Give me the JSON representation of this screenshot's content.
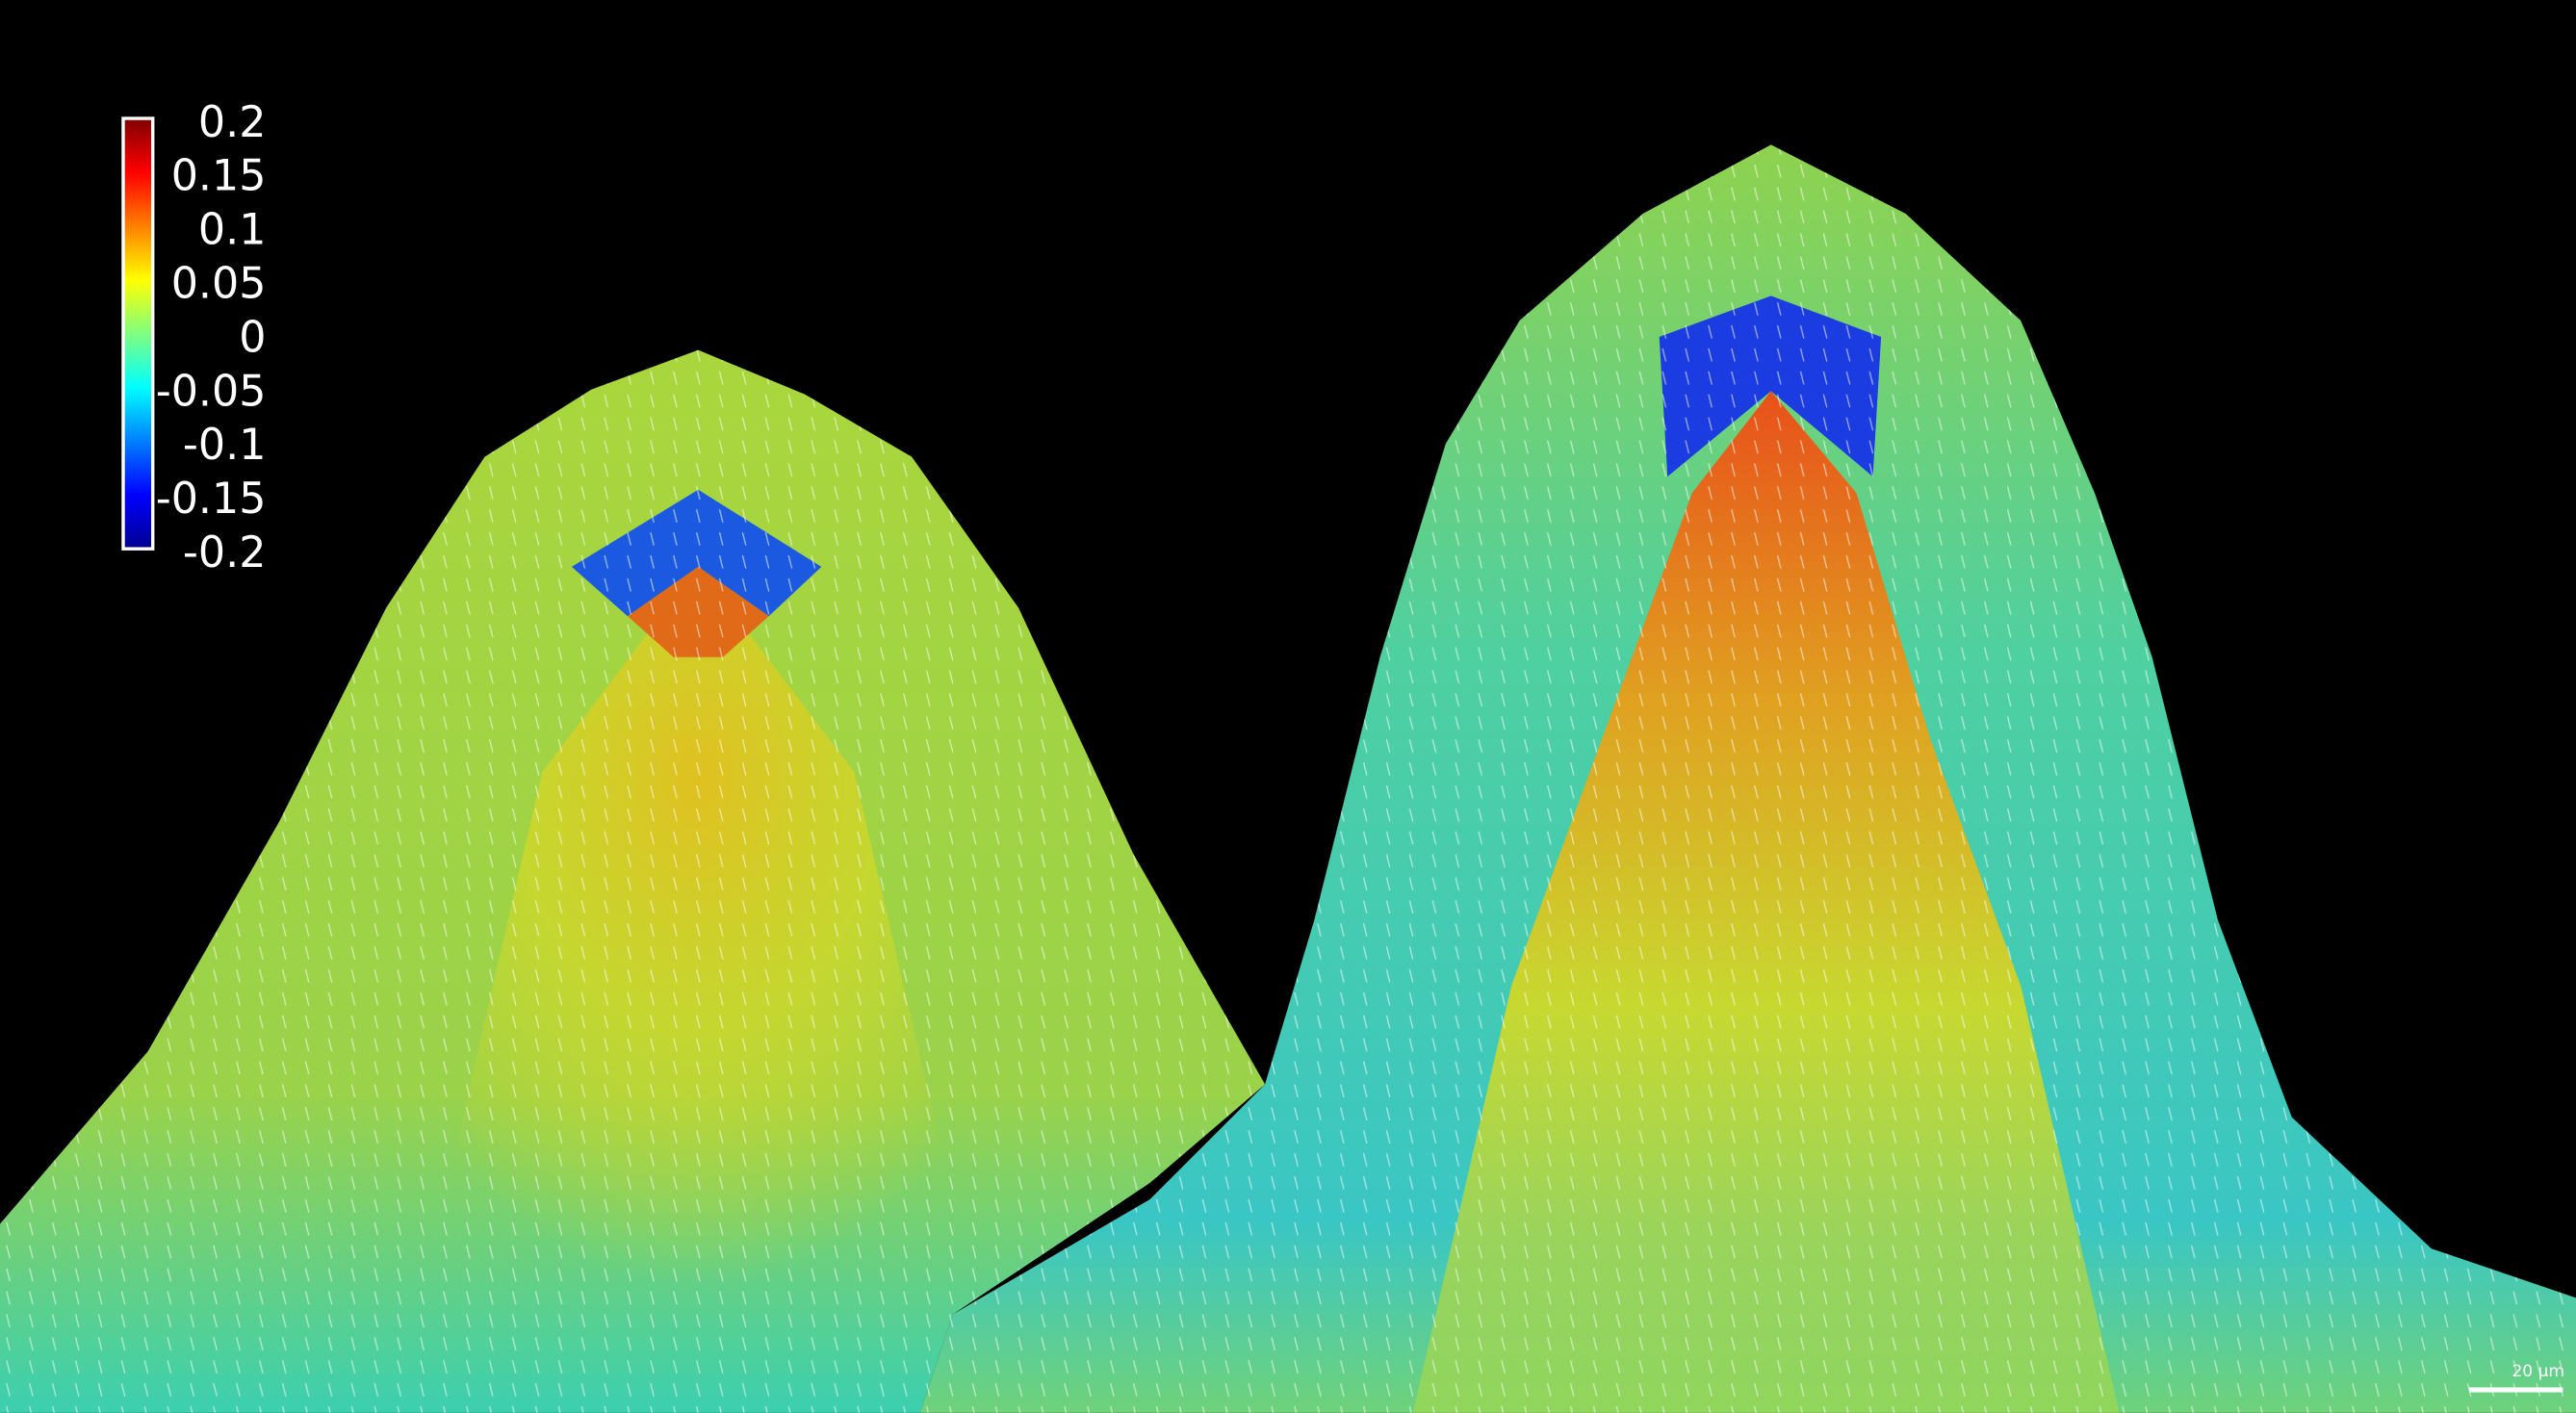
{
  "colorbar": {
    "lim": [
      -0.2,
      0.2
    ],
    "ticks": [
      0.2,
      0.15,
      0.1,
      0.05,
      0,
      -0.05,
      -0.1,
      -0.15,
      -0.2
    ]
  },
  "scale_bar": {
    "label": "20 µm"
  }
}
